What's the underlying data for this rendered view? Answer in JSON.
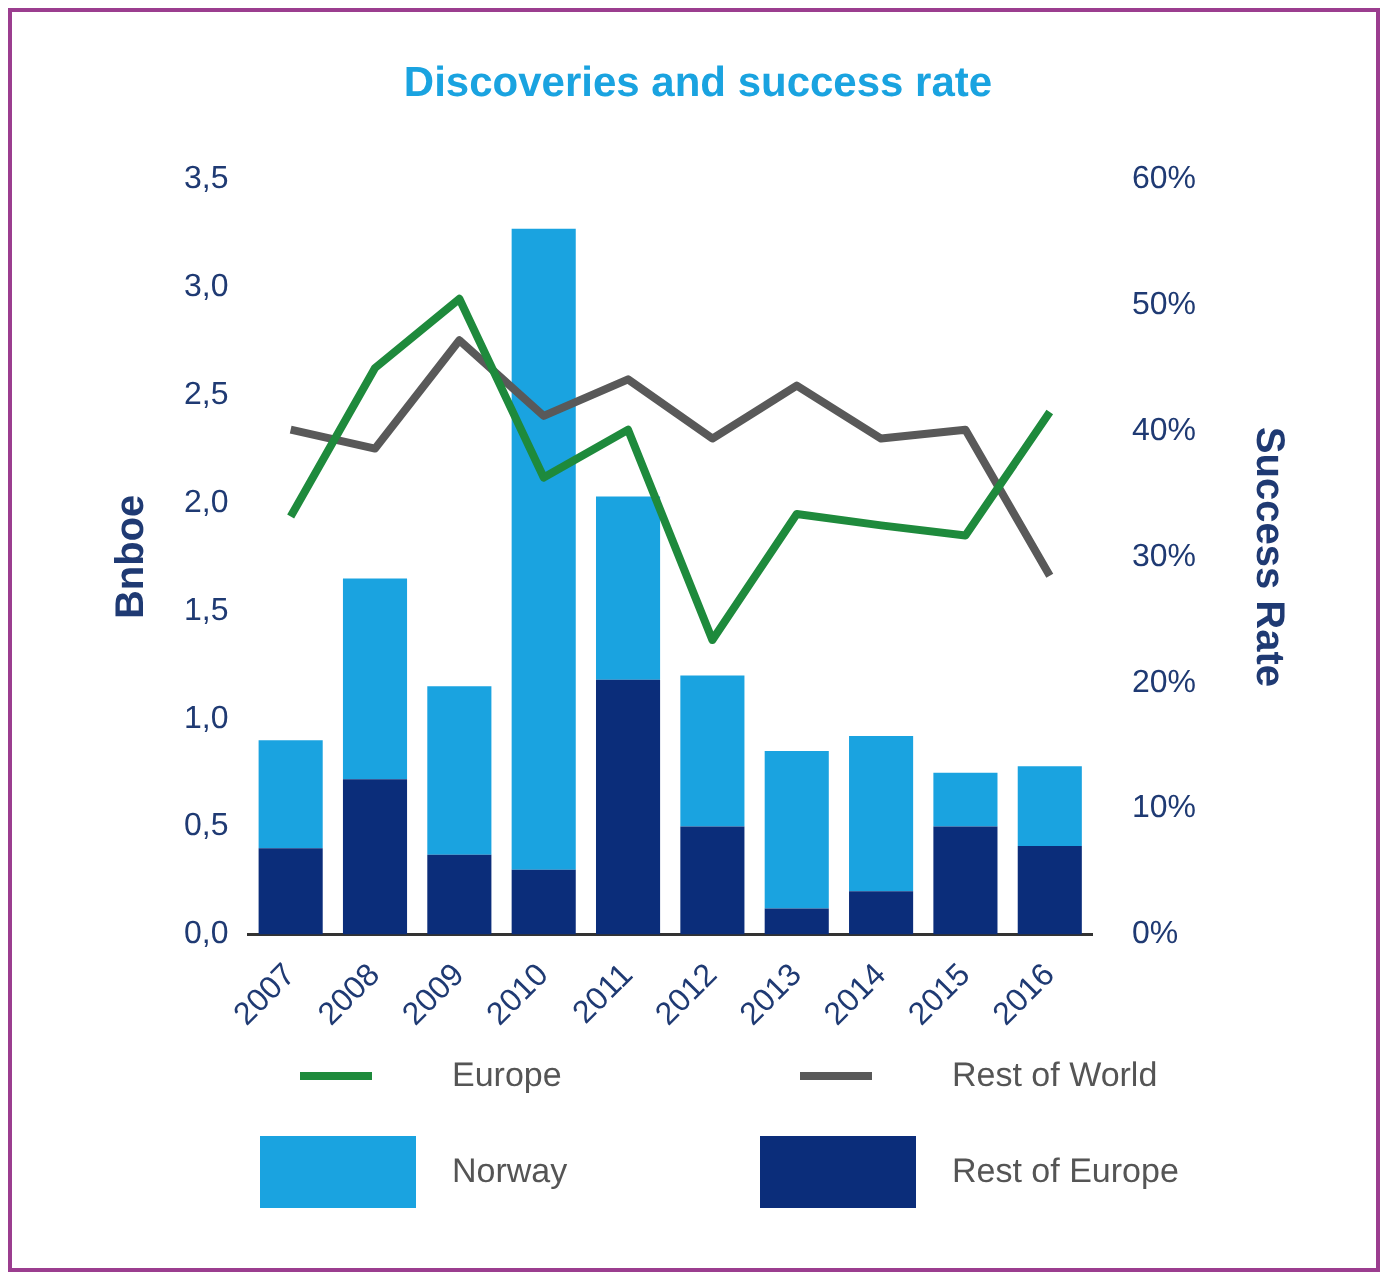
{
  "chart_data": {
    "type": "bar",
    "title": "Discoveries and success rate",
    "ylabel": "Bnboe",
    "y2label": "Success Rate",
    "categories": [
      "2007",
      "2008",
      "2009",
      "2010",
      "2011",
      "2012",
      "2013",
      "2014",
      "2015",
      "2016"
    ],
    "stacked": true,
    "series": [
      {
        "name": "Europe",
        "type": "line",
        "axis": "y2",
        "color": "#1e8a3c",
        "values": [
          33.2,
          45,
          50.5,
          36.3,
          40.1,
          23.4,
          33.4,
          32.5,
          31.7,
          41.5
        ]
      },
      {
        "name": "Rest of World",
        "type": "line",
        "axis": "y2",
        "color": "#595959",
        "values": [
          40.1,
          38.6,
          47.2,
          41.2,
          44.1,
          39.4,
          43.6,
          39.4,
          40.1,
          28.5
        ]
      },
      {
        "name": "Rest of Europe",
        "color": "#0b2d7a",
        "values": [
          0.4,
          0.72,
          0.37,
          0.3,
          1.18,
          0.5,
          0.12,
          0.2,
          0.5,
          0.41
        ]
      },
      {
        "name": "Norway",
        "color": "#1aa3e0",
        "values": [
          0.5,
          0.93,
          0.78,
          2.97,
          0.85,
          0.7,
          0.73,
          0.72,
          0.25,
          0.37
        ]
      }
    ],
    "ylim": [
      0,
      3.5
    ],
    "yticks": [
      {
        "value": 0,
        "label": "0,0"
      },
      {
        "value": 0.5,
        "label": "0,5"
      },
      {
        "value": 1,
        "label": "1,0"
      },
      {
        "value": 1.5,
        "label": "1,5"
      },
      {
        "value": 2,
        "label": "2,0"
      },
      {
        "value": 2.5,
        "label": "2,5"
      },
      {
        "value": 3,
        "label": "3,0"
      },
      {
        "value": 3.5,
        "label": "3,5"
      }
    ],
    "y2lim": [
      0,
      60
    ],
    "y2ticks": [
      {
        "value": 0,
        "label": "0%"
      },
      {
        "value": 10,
        "label": "10%"
      },
      {
        "value": 20,
        "label": "20%"
      },
      {
        "value": 30,
        "label": "30%"
      },
      {
        "value": 40,
        "label": "40%"
      },
      {
        "value": 50,
        "label": "50%"
      },
      {
        "value": 60,
        "label": "60%"
      }
    ],
    "grid": false,
    "legend": "bottom",
    "marker": "none",
    "line_style": "solid"
  }
}
